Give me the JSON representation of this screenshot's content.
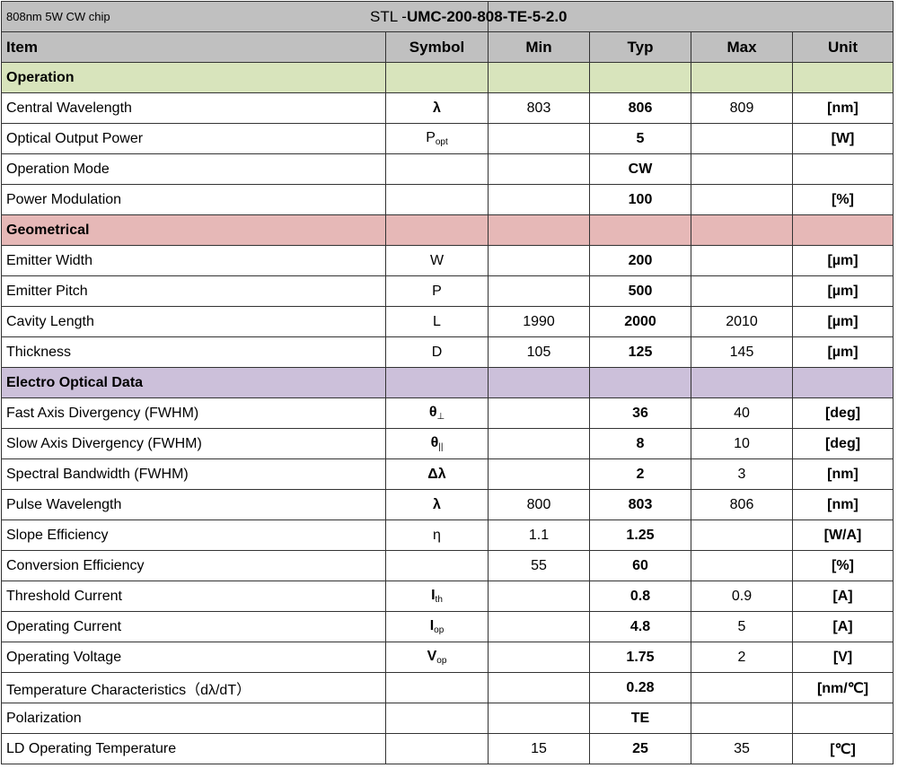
{
  "title": {
    "left": "808nm 5W CW chip",
    "model_prefix": "STL -",
    "model": "UMC-200-808-TE-5-2.0"
  },
  "columns": [
    "Item",
    "Symbol",
    "Min",
    "Typ",
    "Max",
    "Unit"
  ],
  "colors": {
    "header": "#c0c0c0",
    "operation": "#d8e4bc",
    "geometrical": "#e6b8b7",
    "electro_optical": "#ccc0da"
  },
  "sections": [
    {
      "name": "Operation",
      "color": "#d8e4bc",
      "rows": [
        {
          "item": "Central Wavelength",
          "symbol": "λ",
          "sub": "",
          "bold_symbol": true,
          "min": "803",
          "typ": "806",
          "max": "809",
          "unit": "[nm]"
        },
        {
          "item": "Optical Output Power",
          "symbol": "P",
          "sub": "opt",
          "bold_symbol": false,
          "min": "",
          "typ": "5",
          "max": "",
          "unit": "[W]"
        },
        {
          "item": "Operation Mode",
          "symbol": "",
          "sub": "",
          "bold_symbol": false,
          "min": "",
          "typ": "CW",
          "max": "",
          "unit": ""
        },
        {
          "item": "Power Modulation",
          "symbol": "",
          "sub": "",
          "bold_symbol": false,
          "min": "",
          "typ": "100",
          "max": "",
          "unit": "[%]"
        }
      ]
    },
    {
      "name": "Geometrical",
      "color": "#e6b8b7",
      "rows": [
        {
          "item": "Emitter Width",
          "symbol": "W",
          "sub": "",
          "bold_symbol": false,
          "min": "",
          "typ": "200",
          "max": "",
          "unit": "[µm]"
        },
        {
          "item": "Emitter Pitch",
          "symbol": "P",
          "sub": "",
          "bold_symbol": false,
          "min": "",
          "typ": "500",
          "max": "",
          "unit": "[µm]"
        },
        {
          "item": "Cavity Length",
          "symbol": "L",
          "sub": "",
          "bold_symbol": false,
          "min": "1990",
          "typ": "2000",
          "max": "2010",
          "unit": "[µm]"
        },
        {
          "item": "Thickness",
          "symbol": "D",
          "sub": "",
          "bold_symbol": false,
          "min": "105",
          "typ": "125",
          "max": "145",
          "unit": "[µm]"
        }
      ]
    },
    {
      "name": "Electro Optical Data",
      "color": "#ccc0da",
      "rows": [
        {
          "item": "Fast Axis Divergency (FWHM)",
          "symbol": "θ",
          "sub": "⊥",
          "bold_symbol": true,
          "min": "",
          "typ": "36",
          "max": "40",
          "unit": "[deg]"
        },
        {
          "item": "Slow Axis Divergency (FWHM)",
          "symbol": "θ",
          "sub": "||",
          "bold_symbol": true,
          "min": "",
          "typ": "8",
          "max": "10",
          "unit": "[deg]"
        },
        {
          "item": "Spectral Bandwidth (FWHM)",
          "symbol": "Δλ",
          "sub": "",
          "bold_symbol": true,
          "min": "",
          "typ": "2",
          "max": "3",
          "unit": "[nm]"
        },
        {
          "item": "Pulse Wavelength",
          "symbol": "λ",
          "sub": "",
          "bold_symbol": true,
          "min": "800",
          "typ": "803",
          "max": "806",
          "unit": "[nm]"
        },
        {
          "item": "Slope Efficiency",
          "symbol": "η",
          "sub": "",
          "bold_symbol": false,
          "min": "1.1",
          "typ": "1.25",
          "max": "",
          "unit": "[W/A]"
        },
        {
          "item": "Conversion Efficiency",
          "symbol": "",
          "sub": "",
          "bold_symbol": false,
          "min": "55",
          "typ": "60",
          "max": "",
          "unit": "[%]"
        },
        {
          "item": "Threshold Current",
          "symbol": "I",
          "sub": "th",
          "bold_symbol": true,
          "min": "",
          "typ": "0.8",
          "max": "0.9",
          "unit": "[A]"
        },
        {
          "item": "Operating Current",
          "symbol": "I",
          "sub": "op",
          "bold_symbol": true,
          "min": "",
          "typ": "4.8",
          "max": "5",
          "unit": "[A]"
        },
        {
          "item": "Operating Voltage",
          "symbol": "V",
          "sub": "op",
          "bold_symbol": true,
          "min": "",
          "typ": "1.75",
          "max": "2",
          "unit": "[V]"
        },
        {
          "item": "Temperature Characteristics（dλ/dT）",
          "symbol": "",
          "sub": "",
          "bold_symbol": false,
          "min": "",
          "typ": "0.28",
          "max": "",
          "unit": "[nm/℃]"
        },
        {
          "item": "Polarization",
          "symbol": "",
          "sub": "",
          "bold_symbol": false,
          "min": "",
          "typ": "TE",
          "max": "",
          "unit": ""
        },
        {
          "item": "LD Operating Temperature",
          "symbol": "",
          "sub": "",
          "bold_symbol": false,
          "min": "15",
          "typ": "25",
          "max": "35",
          "unit": "[℃]"
        }
      ]
    }
  ]
}
